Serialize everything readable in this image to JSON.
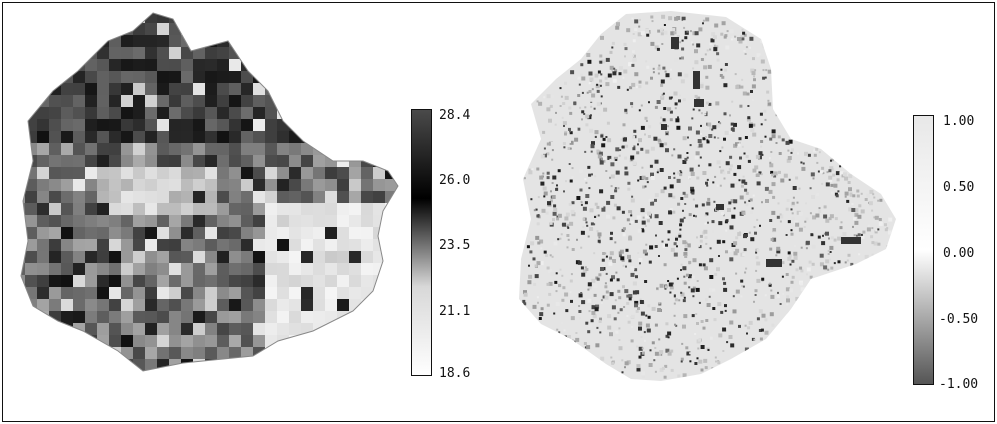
{
  "figure": {
    "left_map": {
      "type": "choropleth",
      "colorbar": {
        "ticks": [
          "28.4",
          "26.0",
          "23.5",
          "21.1",
          "18.6"
        ],
        "colors": [
          "#4a4a4a",
          "#000000",
          "#d8d8d8",
          "#ffffff"
        ]
      }
    },
    "right_map": {
      "type": "pixel-map",
      "colorbar": {
        "ticks": [
          "1.00",
          "0.50",
          "0.00",
          "-0.50",
          "-1.00"
        ],
        "colors": [
          "#e8e8e8",
          "#ffffff",
          "#555555"
        ]
      }
    }
  }
}
